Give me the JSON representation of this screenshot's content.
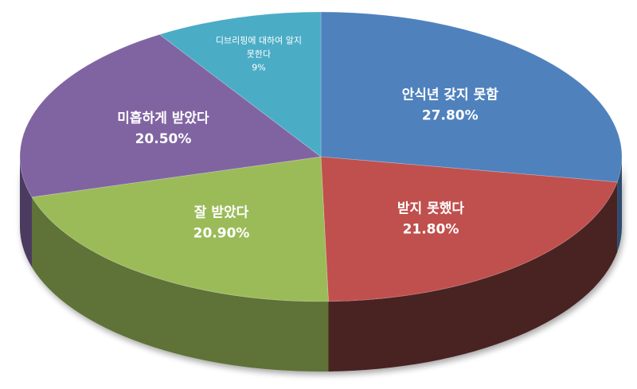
{
  "chart_data": {
    "type": "pie",
    "style": "3d",
    "legend": "none",
    "slices": [
      {
        "label": "안식년 갖지 못함",
        "value_label": "27.80%",
        "value": 27.8,
        "color": "#4F81BD",
        "side_color": "#2E4B70"
      },
      {
        "label": "받지 못했다",
        "value_label": "21.80%",
        "value": 21.8,
        "color": "#C0504D",
        "side_color": "#4A2020"
      },
      {
        "label": "잘 받았다",
        "value_label": "20.90%",
        "value": 20.9,
        "color": "#9BBB59",
        "side_color": "#5E7237"
      },
      {
        "label": "미흡하게 받았다",
        "value_label": "20.50%",
        "value": 20.5,
        "color": "#8064A2",
        "side_color": "#4C3B61"
      },
      {
        "label": "디브리핑에 대하여 알지 못한다",
        "label_lines": [
          "디브리핑에 대하여 알지",
          "못한다"
        ],
        "value_label": "9%",
        "value": 9,
        "color": "#4BACC6",
        "side_color": "#2C6B7C"
      }
    ]
  }
}
